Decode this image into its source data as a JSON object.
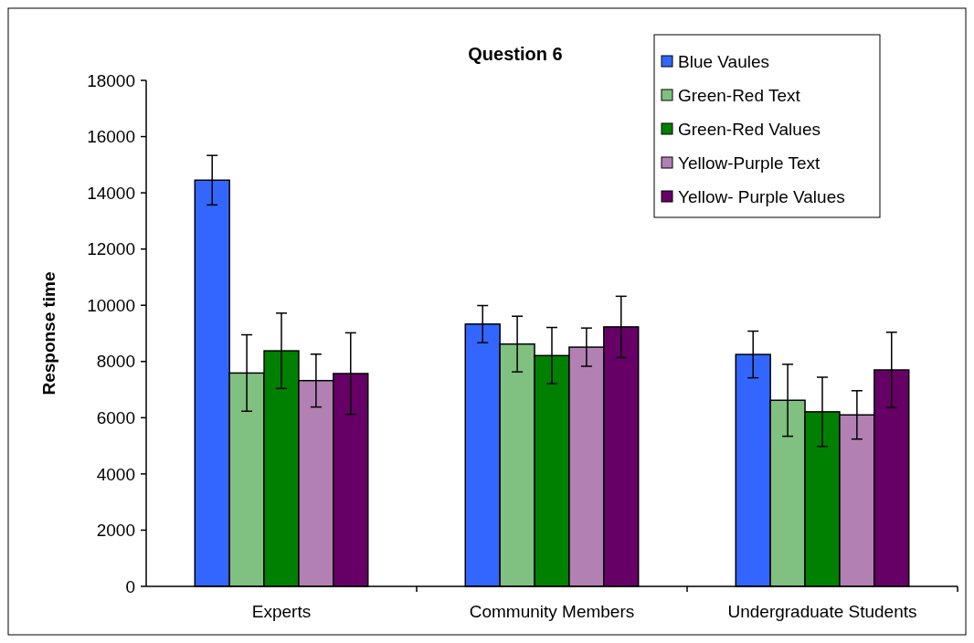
{
  "chart_data": {
    "type": "bar",
    "title": "Question 6",
    "ylabel": "Response time",
    "categories": [
      "Experts",
      "Community Members",
      "Undergraduate Students"
    ],
    "series": [
      {
        "name": "Blue Vaules",
        "color": "#3366ff",
        "values": [
          14450,
          9330,
          8250
        ],
        "errors": [
          880,
          660,
          830
        ]
      },
      {
        "name": "Green-Red Text",
        "color": "#80c080",
        "values": [
          7590,
          8620,
          6620
        ],
        "errors": [
          1360,
          990,
          1280
        ]
      },
      {
        "name": "Green-Red Values",
        "color": "#008000",
        "values": [
          8380,
          8210,
          6210
        ],
        "errors": [
          1340,
          1000,
          1230
        ]
      },
      {
        "name": "Yellow-Purple Text",
        "color": "#b380b3",
        "values": [
          7320,
          8510,
          6100
        ],
        "errors": [
          940,
          680,
          860
        ]
      },
      {
        "name": "Yellow- Purple Values",
        "color": "#660066",
        "values": [
          7570,
          9230,
          7700
        ],
        "errors": [
          1450,
          1090,
          1340
        ]
      }
    ],
    "ylim": [
      0,
      18000
    ],
    "yticks": [
      0,
      2000,
      4000,
      6000,
      8000,
      10000,
      12000,
      14000,
      16000,
      18000
    ],
    "grid": false,
    "legend": "top right"
  }
}
